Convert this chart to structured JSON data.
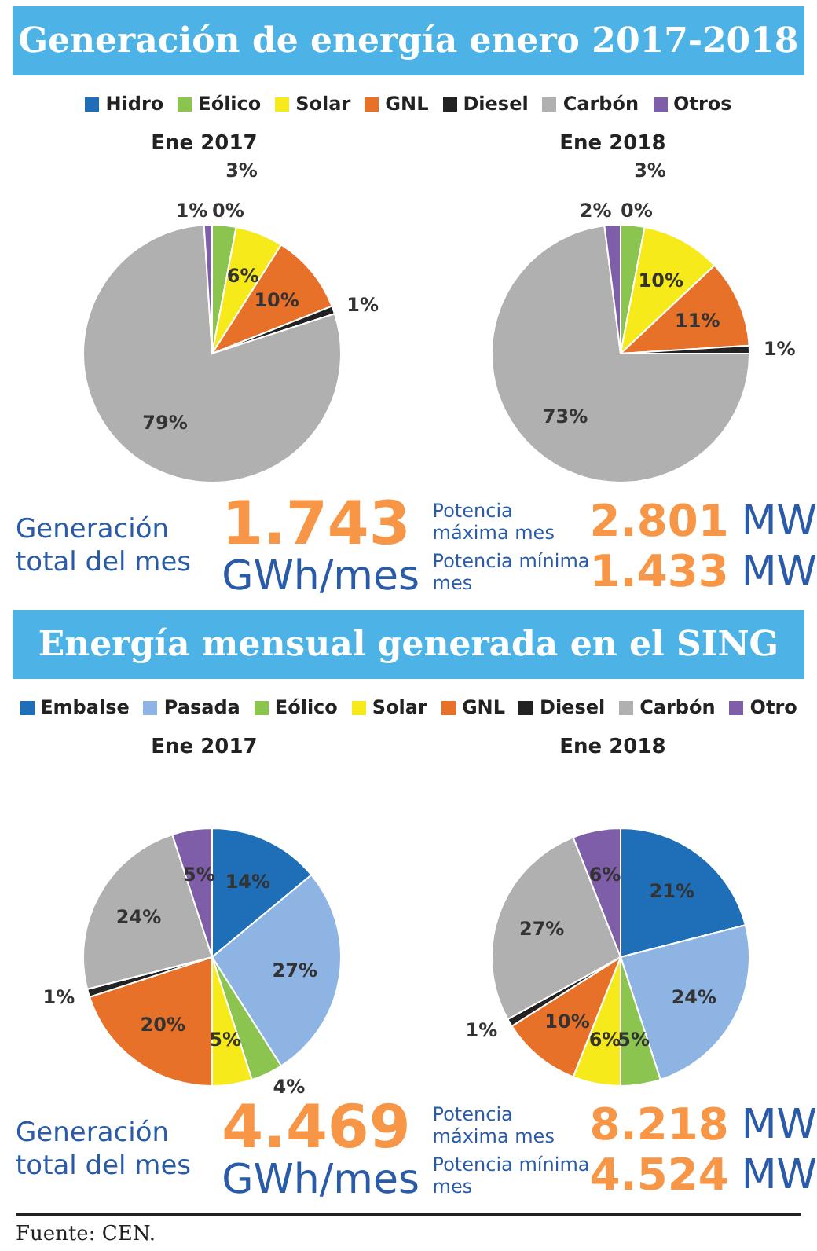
{
  "chart_data": [
    {
      "type": "pie",
      "title": "Generación de energía enero 2017-2018",
      "legend": "top",
      "categories": [
        "Hidro",
        "Eólico",
        "Solar",
        "GNL",
        "Diesel",
        "Carbón",
        "Otros"
      ],
      "colors": [
        "#1f6fb8",
        "#8cc450",
        "#f7ea1a",
        "#e8712a",
        "#222222",
        "#b0b0b0",
        "#7e5ea8"
      ],
      "series": [
        {
          "name": "Ene 2017",
          "values": [
            0,
            3,
            6,
            10,
            1,
            79,
            1
          ],
          "value_labels": [
            "0%",
            "3%",
            "6%",
            "10%",
            "1%",
            "79%",
            "1%"
          ]
        },
        {
          "name": "Ene 2018",
          "values": [
            0,
            3,
            10,
            11,
            1,
            73,
            2
          ],
          "value_labels": [
            "0%",
            "3%",
            "10%",
            "11%",
            "1%",
            "73%",
            "2%"
          ]
        }
      ]
    },
    {
      "type": "other",
      "annotations": [
        "Generación total del mes",
        "1.743",
        "GWh/mes",
        "Potencia máxima mes",
        "2.801",
        "MW",
        "Potencia mínima mes",
        "1.433",
        "MW"
      ]
    },
    {
      "type": "pie",
      "title": "Energía mensual generada en el SING",
      "legend": "top",
      "categories": [
        "Embalse",
        "Pasada",
        "Eólico",
        "Solar",
        "GNL",
        "Diesel",
        "Carbón",
        "Otro"
      ],
      "colors": [
        "#1f6fb8",
        "#8eb4e3",
        "#8cc450",
        "#f7ea1a",
        "#e8712a",
        "#222222",
        "#b0b0b0",
        "#7e5ea8"
      ],
      "series": [
        {
          "name": "Ene 2017",
          "values": [
            14,
            27,
            4,
            5,
            20,
            1,
            24,
            5
          ],
          "value_labels": [
            "14%",
            "27%",
            "4%",
            "5%",
            "20%",
            "1%",
            "24%",
            "5%"
          ]
        },
        {
          "name": "Ene 2018",
          "values": [
            21,
            24,
            5,
            6,
            10,
            1,
            27,
            6
          ],
          "value_labels": [
            "21%",
            "24%",
            "5%",
            "6%",
            "10%",
            "1%",
            "27%",
            "6%"
          ]
        }
      ]
    },
    {
      "type": "other",
      "annotations": [
        "Generación total del mes",
        "4.469",
        "GWh/mes",
        "Potencia máxima mes",
        "8.218",
        "MW",
        "Potencia mínima mes",
        "4.524",
        "MW",
        "Fuente: CEN."
      ]
    }
  ]
}
